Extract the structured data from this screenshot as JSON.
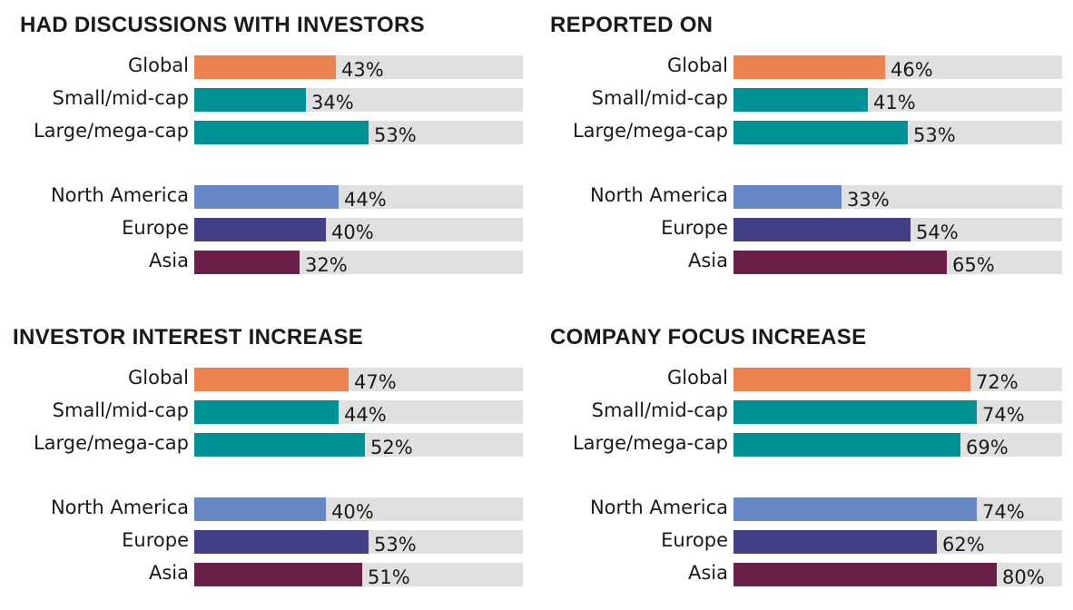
{
  "chart_data": [
    {
      "type": "bar",
      "title": "HAD DISCUSSIONS WITH INVESTORS",
      "categories": [
        "Global",
        "Small/mid-cap",
        "Large/mega-cap",
        "North America",
        "Europe",
        "Asia"
      ],
      "values": [
        43,
        34,
        53,
        44,
        40,
        32
      ],
      "labels": [
        "43%",
        "34%",
        "53%",
        "44%",
        "40%",
        "32%"
      ],
      "ylim": [
        0,
        100
      ]
    },
    {
      "type": "bar",
      "title": "REPORTED ON",
      "categories": [
        "Global",
        "Small/mid-cap",
        "Large/mega-cap",
        "North America",
        "Europe",
        "Asia"
      ],
      "values": [
        46,
        41,
        53,
        33,
        54,
        65
      ],
      "labels": [
        "46%",
        "41%",
        "53%",
        "33%",
        "54%",
        "65%"
      ],
      "ylim": [
        0,
        100
      ]
    },
    {
      "type": "bar",
      "title": "INVESTOR INTEREST INCREASE",
      "categories": [
        "Global",
        "Small/mid-cap",
        "Large/mega-cap",
        "North America",
        "Europe",
        "Asia"
      ],
      "values": [
        47,
        44,
        52,
        40,
        53,
        51
      ],
      "labels": [
        "47%",
        "44%",
        "52%",
        "40%",
        "53%",
        "51%"
      ],
      "ylim": [
        0,
        100
      ]
    },
    {
      "type": "bar",
      "title": "COMPANY FOCUS INCREASE",
      "categories": [
        "Global",
        "Small/mid-cap",
        "Large/mega-cap",
        "North America",
        "Europe",
        "Asia"
      ],
      "values": [
        72,
        74,
        69,
        74,
        62,
        80
      ],
      "labels": [
        "72%",
        "74%",
        "69%",
        "74%",
        "62%",
        "80%"
      ],
      "ylim": [
        0,
        100
      ]
    }
  ],
  "colors": {
    "Global": "#ec824f",
    "Small/mid-cap": "#009196",
    "Large/mega-cap": "#009196",
    "North America": "#6786c6",
    "Europe": "#433f86",
    "Asia": "#691f47",
    "track": "#e0e0e0"
  }
}
